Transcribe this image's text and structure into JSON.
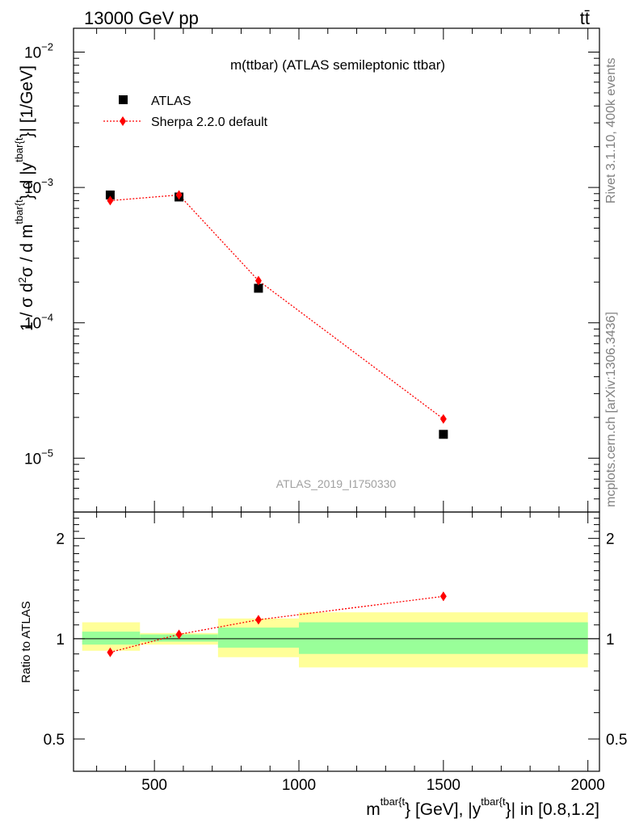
{
  "header": {
    "energy_label": "13000 GeV pp",
    "process_label": "tt̄"
  },
  "side": {
    "rivet_label": "Rivet 3.1.10,  400k events",
    "mcplots_label": "mcplots.cern.ch [arXiv:1306.3436]"
  },
  "chart_data": [
    {
      "type": "scatter",
      "panel": "main",
      "title": "m(ttbar) (ATLAS semileptonic ttbar)",
      "analysis_id": "ATLAS_2019_I1750330",
      "ylabel_parts": [
        "1 / σ d",
        "2",
        "σ / d m",
        "tbar{t",
        "} d |y",
        "tbar{t",
        "}| [1/GeV]"
      ],
      "xlim": [
        220,
        2040
      ],
      "ylim": [
        4e-06,
        0.015
      ],
      "yscale": "log",
      "yticks": [
        {
          "value": 1e-05,
          "base": "10",
          "exp": "−5"
        },
        {
          "value": 0.0001,
          "base": "10",
          "exp": "−4"
        },
        {
          "value": 0.001,
          "base": "10",
          "exp": "−3"
        },
        {
          "value": 0.01,
          "base": "10",
          "exp": "−2"
        }
      ],
      "legend_position": "top-left",
      "series": [
        {
          "name": "ATLAS",
          "style": "square-marker",
          "color": "#000000",
          "x": [
            347,
            585,
            860,
            1500
          ],
          "y": [
            0.00088,
            0.00085,
            0.00018,
            1.5e-05
          ]
        },
        {
          "name": "Sherpa 2.2.0 default",
          "style": "diamond-dotted-line",
          "color": "#ff0000",
          "x": [
            347,
            585,
            860,
            1500
          ],
          "y": [
            0.0008,
            0.00088,
            0.000205,
            1.95e-05
          ]
        }
      ]
    },
    {
      "type": "scatter",
      "panel": "ratio",
      "ylabel": "Ratio to ATLAS",
      "xlabel_parts": [
        "m",
        "tbar{t",
        "} [GeV], |y",
        "tbar{t",
        "}| in [0.8,1.2]"
      ],
      "xlim": [
        220,
        2040
      ],
      "ylim": [
        0.4,
        2.4
      ],
      "yscale": "log",
      "xticks": [
        500,
        1000,
        1500,
        2000
      ],
      "yticks": [
        0.5,
        1,
        2
      ],
      "reference_line": 1,
      "bands": {
        "colors": {
          "stat": "#99ff99",
          "total": "#ffff99"
        },
        "bins": [
          {
            "x": [
              250,
              450
            ],
            "stat": [
              0.96,
              1.05
            ],
            "total": [
              0.92,
              1.12
            ]
          },
          {
            "x": [
              450,
              720
            ],
            "stat": [
              0.98,
              1.03
            ],
            "total": [
              0.96,
              1.04
            ]
          },
          {
            "x": [
              720,
              1000
            ],
            "stat": [
              0.94,
              1.08
            ],
            "total": [
              0.88,
              1.15
            ]
          },
          {
            "x": [
              1000,
              2000
            ],
            "stat": [
              0.9,
              1.12
            ],
            "total": [
              0.82,
              1.2
            ]
          }
        ]
      },
      "series": [
        {
          "name": "Sherpa 2.2.0 default",
          "style": "diamond-dotted-line",
          "color": "#ff0000",
          "x": [
            347,
            585,
            860,
            1500
          ],
          "y": [
            0.91,
            1.03,
            1.14,
            1.34
          ],
          "yerr": [
            0.0,
            0.0,
            0.0,
            0.04
          ]
        }
      ]
    }
  ]
}
